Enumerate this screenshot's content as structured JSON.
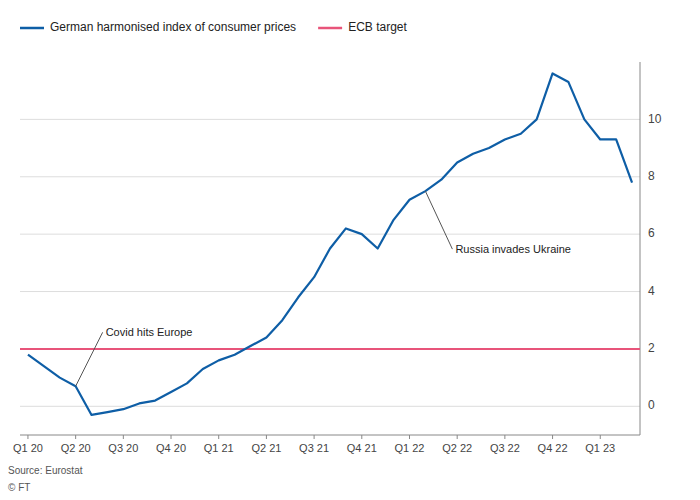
{
  "chart_data": {
    "type": "line",
    "source": "Source: Eurostat",
    "footnote": "© FT",
    "categories": [
      "Q1 20",
      null,
      null,
      "Q2 20",
      null,
      null,
      "Q3 20",
      null,
      null,
      "Q4 20",
      null,
      null,
      "Q1 21",
      null,
      null,
      "Q2 21",
      null,
      null,
      "Q3 21",
      null,
      null,
      "Q4 21",
      null,
      null,
      "Q1 22",
      null,
      null,
      "Q2 22",
      null,
      null,
      "Q3 22",
      null,
      null,
      "Q4 22",
      null,
      null,
      "Q1 23",
      null,
      null
    ],
    "series": [
      {
        "name": "German harmonised index of consumer prices",
        "color": "#0e5ea6",
        "values": [
          1.8,
          1.4,
          1.0,
          0.7,
          -0.3,
          -0.2,
          -0.1,
          0.1,
          0.2,
          0.5,
          0.8,
          1.3,
          1.6,
          1.8,
          2.1,
          2.4,
          3.0,
          3.8,
          4.5,
          5.5,
          6.2,
          6.0,
          5.5,
          6.5,
          7.2,
          7.5,
          7.9,
          8.5,
          8.8,
          9.0,
          9.3,
          9.5,
          10.0,
          11.6,
          11.3,
          10.0,
          9.3,
          9.3,
          7.8
        ]
      }
    ],
    "reference_line": {
      "name": "ECB target",
      "value": 2.0,
      "color": "#e8547a"
    },
    "annotations": [
      {
        "text": "Covid hits Europe",
        "x_index": 3,
        "y": 2.3
      },
      {
        "text": "Russia invades Ukraine",
        "x_index": 25,
        "y": 5.2
      }
    ],
    "ylim": [
      -1,
      12
    ],
    "yticks": [
      0,
      2,
      4,
      6,
      8,
      10
    ],
    "grid": true,
    "legend": "upper left"
  }
}
